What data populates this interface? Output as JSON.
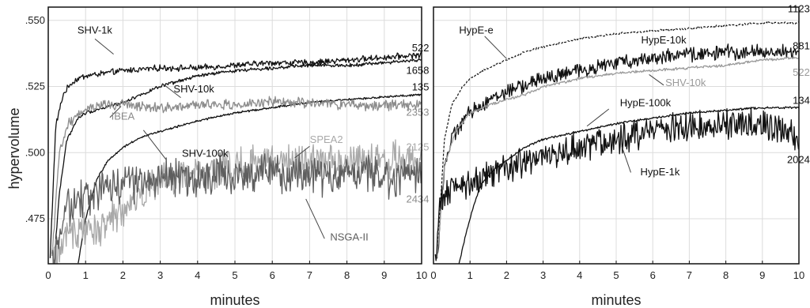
{
  "ylabel": "hypervolume",
  "chart_data": [
    {
      "type": "line",
      "xlabel": "minutes",
      "ylabel": "hypervolume",
      "xlim": [
        0,
        10
      ],
      "ylim": [
        0.458,
        0.555
      ],
      "x_ticks": [
        "0",
        "1",
        "2",
        "3",
        "4",
        "5",
        "6",
        "7",
        "8",
        "9",
        "10"
      ],
      "y_ticks": [
        ".550",
        ".525",
        ".500",
        ".475"
      ],
      "y_tick_values": [
        0.55,
        0.525,
        0.5,
        0.475
      ],
      "grid": true,
      "series": [
        {
          "name": "SHV-1k",
          "color": "#111111",
          "noise": 0.0009,
          "x": [
            0.05,
            0.2,
            0.4,
            0.6,
            0.8,
            1,
            1.5,
            2,
            3,
            4,
            5,
            6,
            7,
            8,
            9,
            10
          ],
          "y": [
            0.46,
            0.51,
            0.522,
            0.526,
            0.528,
            0.529,
            0.53,
            0.531,
            0.532,
            0.532,
            0.533,
            0.534,
            0.534,
            0.535,
            0.536,
            0.537
          ]
        },
        {
          "name": "SHV-10k",
          "color": "#111111",
          "noise": 0.0005,
          "x": [
            0.15,
            0.3,
            0.5,
            0.8,
            1,
            1.5,
            2,
            2.5,
            3,
            4,
            5,
            6,
            7,
            8,
            9,
            10
          ],
          "y": [
            0.458,
            0.485,
            0.505,
            0.513,
            0.515,
            0.517,
            0.519,
            0.522,
            0.525,
            0.529,
            0.531,
            0.532,
            0.533,
            0.533,
            0.534,
            0.535
          ]
        },
        {
          "name": "SHV-100k",
          "color": "#111111",
          "noise": 0.0003,
          "x": [
            0.8,
            1,
            1.3,
            1.6,
            2,
            2.5,
            3,
            4,
            5,
            6,
            7,
            8,
            9,
            10
          ],
          "y": [
            0.458,
            0.475,
            0.49,
            0.497,
            0.502,
            0.506,
            0.508,
            0.512,
            0.515,
            0.517,
            0.519,
            0.52,
            0.521,
            0.522
          ]
        },
        {
          "name": "IBEA",
          "color": "#8c8c8c",
          "noise": 0.0016,
          "x": [
            0.1,
            0.3,
            0.5,
            0.8,
            1,
            1.5,
            2,
            3,
            4,
            5,
            6,
            7,
            8,
            9,
            10
          ],
          "y": [
            0.46,
            0.5,
            0.51,
            0.515,
            0.517,
            0.518,
            0.518,
            0.517,
            0.518,
            0.518,
            0.519,
            0.519,
            0.518,
            0.518,
            0.518
          ]
        },
        {
          "name": "SPEA2",
          "color": "#a9a9a9",
          "noise": 0.0055,
          "x": [
            0.1,
            0.3,
            0.5,
            1,
            1.5,
            2,
            2.5,
            3,
            4,
            5,
            6,
            7,
            8,
            9,
            10
          ],
          "y": [
            0.46,
            0.462,
            0.47,
            0.47,
            0.472,
            0.478,
            0.484,
            0.489,
            0.492,
            0.495,
            0.496,
            0.497,
            0.497,
            0.497,
            0.497
          ]
        },
        {
          "name": "NSGA-II",
          "color": "#5e5e5e",
          "noise": 0.006,
          "x": [
            0.1,
            0.3,
            0.5,
            1,
            1.5,
            2,
            2.5,
            3,
            4,
            5,
            6,
            7,
            8,
            9,
            10
          ],
          "y": [
            0.46,
            0.47,
            0.478,
            0.483,
            0.487,
            0.488,
            0.489,
            0.49,
            0.491,
            0.492,
            0.492,
            0.492,
            0.491,
            0.491,
            0.491
          ]
        }
      ],
      "annotations": [
        {
          "text": "SHV-1k",
          "color": "#111111"
        },
        {
          "text": "SHV-10k",
          "color": "#111111"
        },
        {
          "text": "SHV-100k",
          "color": "#111111"
        },
        {
          "text": "IBEA",
          "color": "#8c8c8c"
        },
        {
          "text": "SPEA2",
          "color": "#a9a9a9"
        },
        {
          "text": "NSGA-II",
          "color": "#5e5e5e"
        },
        {
          "text": "522",
          "color": "#111111"
        },
        {
          "text": "1658",
          "color": "#111111"
        },
        {
          "text": "135",
          "color": "#111111"
        },
        {
          "text": "2353",
          "color": "#8c8c8c"
        },
        {
          "text": "2125",
          "color": "#a9a9a9"
        },
        {
          "text": "2434",
          "color": "#8c8c8c"
        }
      ]
    },
    {
      "type": "line",
      "xlabel": "minutes",
      "xlim": [
        0,
        10
      ],
      "ylim": [
        0.458,
        0.555
      ],
      "x_ticks": [
        "0",
        "1",
        "2",
        "3",
        "4",
        "5",
        "6",
        "7",
        "8",
        "9",
        "10"
      ],
      "grid": true,
      "series": [
        {
          "name": "HypE-e",
          "color": "#111111",
          "dashed": true,
          "noise": 0.0003,
          "x": [
            0.1,
            0.3,
            0.5,
            0.8,
            1,
            1.5,
            2,
            2.5,
            3,
            4,
            5,
            6,
            7,
            8,
            9,
            10
          ],
          "y": [
            0.46,
            0.505,
            0.518,
            0.525,
            0.528,
            0.532,
            0.535,
            0.538,
            0.54,
            0.543,
            0.545,
            0.546,
            0.547,
            0.548,
            0.549,
            0.549
          ]
        },
        {
          "name": "HypE-10k",
          "color": "#111111",
          "noise": 0.0022,
          "x": [
            0.1,
            0.3,
            0.5,
            0.8,
            1,
            1.5,
            2,
            3,
            4,
            5,
            6,
            7,
            8,
            9,
            10
          ],
          "y": [
            0.46,
            0.495,
            0.505,
            0.512,
            0.515,
            0.52,
            0.523,
            0.528,
            0.531,
            0.534,
            0.536,
            0.537,
            0.538,
            0.538,
            0.538
          ]
        },
        {
          "name": "SHV-10k",
          "color": "#9a9a9a",
          "noise": 0.0004,
          "x": [
            0.1,
            0.3,
            0.6,
            1,
            1.5,
            2,
            2.5,
            3,
            4,
            5,
            6,
            7,
            8,
            9,
            10
          ],
          "y": [
            0.46,
            0.495,
            0.508,
            0.515,
            0.518,
            0.52,
            0.522,
            0.525,
            0.528,
            0.53,
            0.531,
            0.532,
            0.533,
            0.535,
            0.536
          ]
        },
        {
          "name": "HypE-100k",
          "color": "#111111",
          "noise": 0.0003,
          "x": [
            0.7,
            0.9,
            1.1,
            1.3,
            1.6,
            2,
            2.5,
            3,
            4,
            5,
            6,
            7,
            8,
            9,
            10
          ],
          "y": [
            0.458,
            0.47,
            0.48,
            0.488,
            0.493,
            0.497,
            0.502,
            0.505,
            0.508,
            0.511,
            0.513,
            0.515,
            0.516,
            0.517,
            0.517
          ]
        },
        {
          "name": "HypE-1k",
          "color": "#111111",
          "noise": 0.0045,
          "x": [
            0.05,
            0.2,
            0.5,
            1,
            1.5,
            2,
            3,
            4,
            5,
            6,
            7,
            8,
            9,
            9.5,
            10
          ],
          "y": [
            0.46,
            0.482,
            0.486,
            0.488,
            0.491,
            0.494,
            0.498,
            0.502,
            0.505,
            0.508,
            0.51,
            0.511,
            0.511,
            0.508,
            0.506
          ]
        }
      ],
      "annotations": [
        {
          "text": "HypE-e",
          "color": "#111111"
        },
        {
          "text": "HypE-10k",
          "color": "#111111"
        },
        {
          "text": "SHV-10k",
          "color": "#9a9a9a"
        },
        {
          "text": "HypE-100k",
          "color": "#111111"
        },
        {
          "text": "HypE-1k",
          "color": "#111111"
        },
        {
          "text": "1123",
          "color": "#111111"
        },
        {
          "text": "881",
          "color": "#111111"
        },
        {
          "text": "522",
          "color": "#9a9a9a"
        },
        {
          "text": "134",
          "color": "#111111"
        },
        {
          "text": "2024",
          "color": "#111111"
        }
      ]
    }
  ]
}
